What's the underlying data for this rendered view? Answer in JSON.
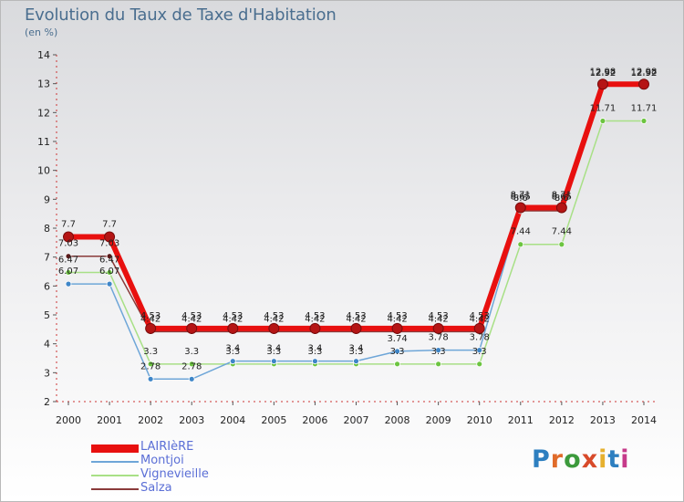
{
  "title": "Evolution du Taux de Taxe d'Habitation",
  "unit": "(en %)",
  "logo": {
    "text": "Proxiti",
    "colors": [
      "#2d7fc0",
      "#e06b2a",
      "#3c9a3c",
      "#d84a2a",
      "#e6b02e",
      "#2d7fc0",
      "#c63a8a"
    ]
  },
  "chart_data": {
    "type": "line",
    "title": "Evolution du Taux de Taxe d'Habitation",
    "ylabel": "(en %)",
    "xlabel": "",
    "ylim": [
      2,
      14
    ],
    "yticks": [
      2,
      3,
      4,
      5,
      6,
      7,
      8,
      9,
      10,
      11,
      12,
      13,
      14
    ],
    "categories": [
      "2000",
      "2001",
      "2002",
      "2003",
      "2004",
      "2005",
      "2006",
      "2007",
      "2008",
      "2009",
      "2010",
      "2011",
      "2012",
      "2013",
      "2014"
    ],
    "grid": false,
    "legend_position": "bottom-left",
    "series": [
      {
        "name": "LAIRIèRE",
        "color": "#e8100f",
        "width": 6,
        "point_color": "#b51515",
        "values": [
          7.7,
          7.7,
          4.53,
          4.53,
          4.53,
          4.53,
          4.53,
          4.53,
          4.53,
          4.53,
          4.53,
          8.71,
          8.71,
          12.98,
          12.98
        ],
        "labels": [
          "7.7",
          "7.7",
          "4.53",
          "4.53",
          "4.53",
          "4.53",
          "4.53",
          "4.53",
          "4.53",
          "4.53",
          "4.53",
          "8.71",
          "8.71",
          "12.98",
          "12.98"
        ]
      },
      {
        "name": "Montjoi",
        "color": "#6ea6d8",
        "width": 1.5,
        "point_color": "#3f86c8",
        "values": [
          6.07,
          6.07,
          2.78,
          2.78,
          3.4,
          3.4,
          3.4,
          3.4,
          3.74,
          3.78,
          3.78,
          8.65,
          8.65,
          12.92,
          12.92
        ],
        "labels": [
          "6.07",
          "6.07",
          "2.78",
          "2.78",
          "3.4",
          "3.4",
          "3.4",
          "3.4",
          "3.74",
          "3.78",
          "3.78",
          "8.65",
          "8.65",
          "12.92",
          "12.92"
        ]
      },
      {
        "name": "Vignevieille",
        "color": "#a8e086",
        "width": 1.5,
        "point_color": "#6cc440",
        "values": [
          6.47,
          6.47,
          3.3,
          3.3,
          3.3,
          3.3,
          3.3,
          3.3,
          3.3,
          3.3,
          3.3,
          7.44,
          7.44,
          11.71,
          11.71
        ],
        "labels": [
          "6.47",
          "6.47",
          "3.3",
          "3.3",
          "3.3",
          "3.3",
          "3.3",
          "3.3",
          "3.3",
          "3.3",
          "3.3",
          "7.44",
          "7.44",
          "11.71",
          "11.71"
        ]
      },
      {
        "name": "Salza",
        "color": "#8a3a3a",
        "width": 1.5,
        "point_color": "#5a1a1a",
        "values": [
          7.03,
          7.03,
          4.42,
          4.42,
          4.42,
          4.42,
          4.42,
          4.42,
          4.42,
          4.42,
          4.42,
          8.6,
          8.6,
          12.92,
          12.92
        ],
        "labels": [
          "7.03",
          "7.03",
          "4.42",
          "4.42",
          "4.42",
          "4.42",
          "4.42",
          "4.42",
          "4.42",
          "4.42",
          "4.42",
          "8.6",
          "8.6",
          "12.92",
          "12.92"
        ]
      }
    ]
  }
}
